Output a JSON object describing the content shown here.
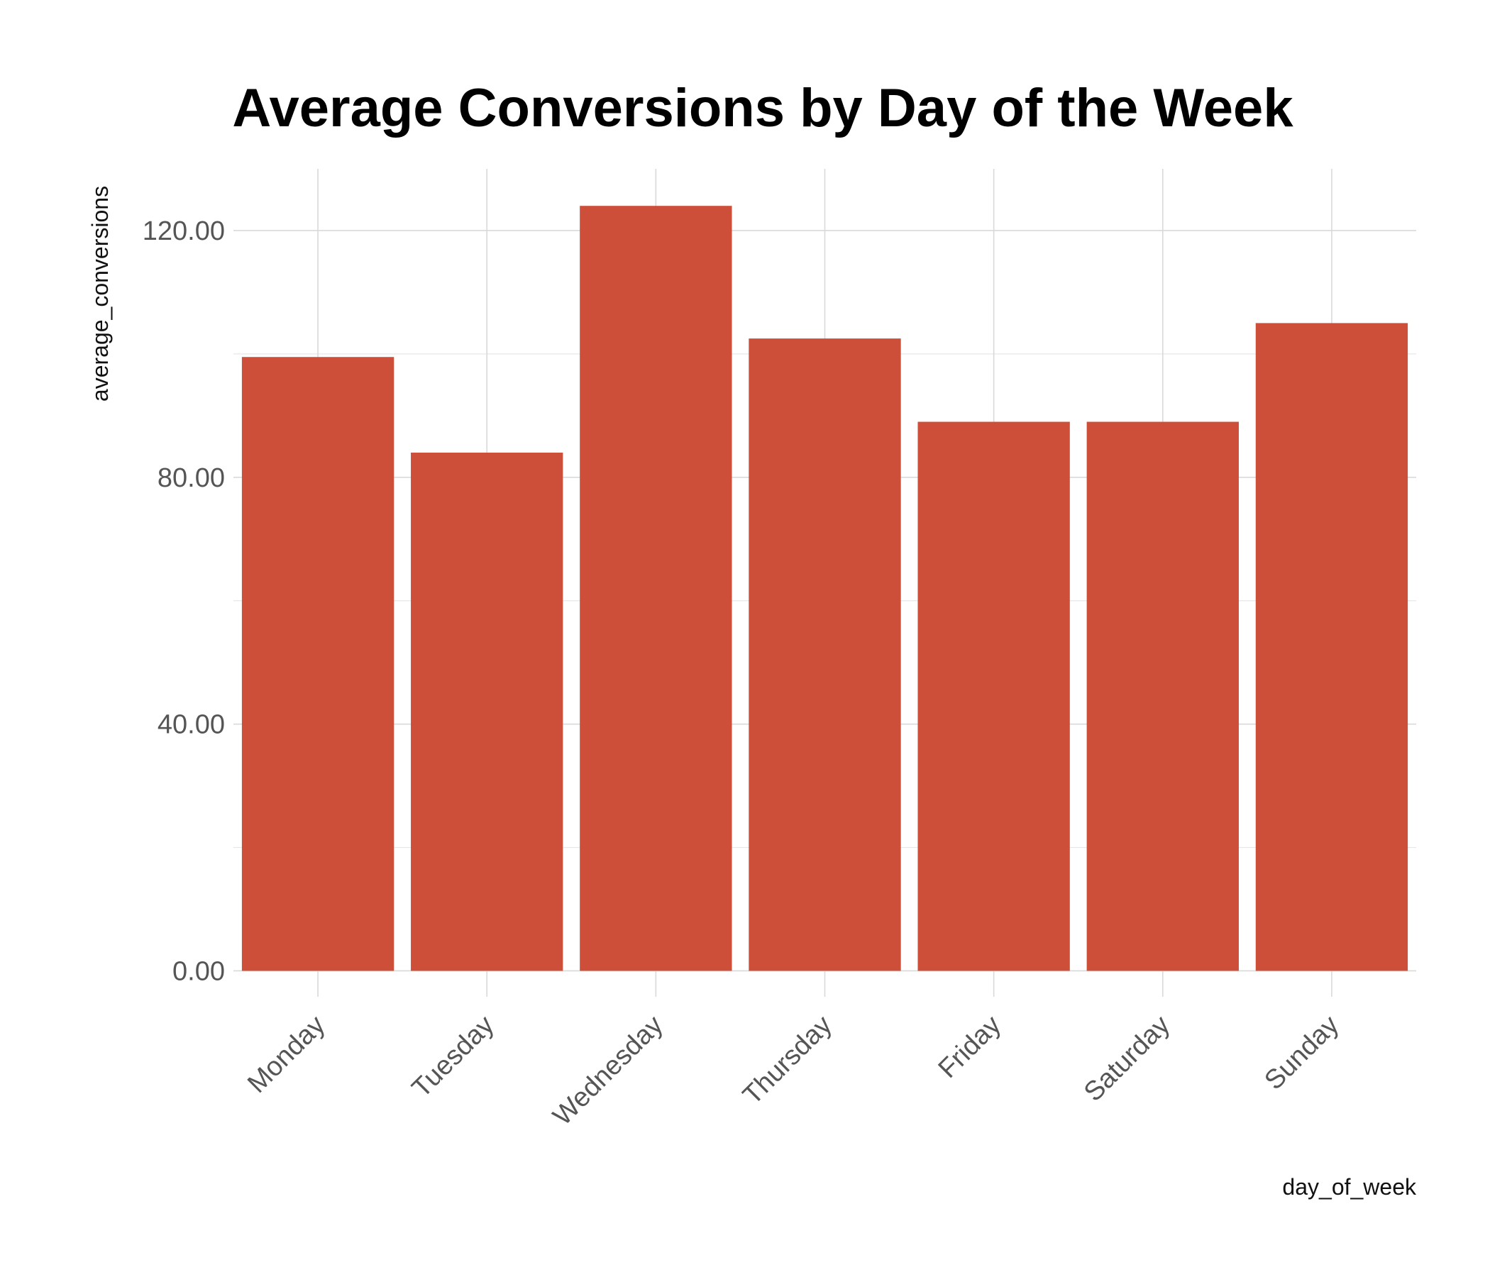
{
  "chart_data": {
    "type": "bar",
    "title": "Average Conversions by Day of the Week",
    "xlabel": "day_of_week",
    "ylabel": "average_conversions",
    "categories": [
      "Monday",
      "Tuesday",
      "Wednesday",
      "Thursday",
      "Friday",
      "Saturday",
      "Sunday"
    ],
    "values": [
      99.5,
      84.0,
      124.0,
      102.5,
      89.0,
      89.0,
      105.0
    ],
    "ylim": [
      -4.2,
      130.0
    ],
    "y_ticks": [
      0,
      40,
      80,
      120
    ],
    "y_tick_labels": [
      "0.00",
      "40.00",
      "80.00",
      "120.00"
    ],
    "grid": true,
    "legend": "none",
    "bar_color": "#cd4f39",
    "grid_color": "#d9d9d9"
  }
}
